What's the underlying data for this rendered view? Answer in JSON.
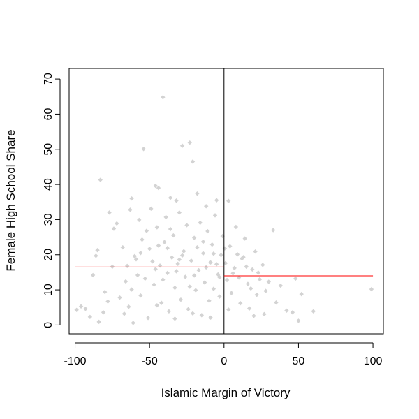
{
  "chart_data": {
    "type": "scatter",
    "title": "",
    "xlabel": "Islamic Margin of Victory",
    "ylabel": "Female High School Share",
    "xlim": [
      -104,
      107
    ],
    "ylim": [
      -2.5,
      73
    ],
    "xticks": [
      -100,
      -50,
      0,
      50,
      100
    ],
    "yticks": [
      0,
      10,
      20,
      30,
      40,
      50,
      60,
      70
    ],
    "xtick_labels": [
      "-100",
      "-50",
      "0",
      "50",
      "100"
    ],
    "ytick_labels": [
      "0",
      "10",
      "20",
      "30",
      "40",
      "50",
      "60",
      "70"
    ],
    "grid": false,
    "legend": "none",
    "point_color": "#d3d3d3",
    "fit_color": "#ff0000",
    "cutoff_line": {
      "x": 0,
      "color": "#000000"
    },
    "fitted_lines": [
      {
        "x": [
          -100,
          0
        ],
        "y": [
          16.5,
          16.5
        ]
      },
      {
        "x": [
          0,
          100
        ],
        "y": [
          14.0,
          14.0
        ]
      }
    ],
    "series": [
      {
        "points": [
          [
            -41,
            64.8
          ],
          [
            -54,
            50.1
          ],
          [
            -28,
            51.0
          ],
          [
            -23,
            51.9
          ],
          [
            -21,
            46.5
          ],
          [
            -83,
            41.3
          ],
          [
            -46,
            39.6
          ],
          [
            -44,
            39.0
          ],
          [
            -77,
            32.0
          ],
          [
            -36,
            36.2
          ],
          [
            -32,
            35.4
          ],
          [
            -18,
            37.4
          ],
          [
            -12,
            33.8
          ],
          [
            -5,
            35.5
          ],
          [
            3,
            35.3
          ],
          [
            33,
            27.0
          ],
          [
            -99,
            4.3
          ],
          [
            -96,
            5.3
          ],
          [
            -93,
            4.6
          ],
          [
            -90,
            2.3
          ],
          [
            -86,
            19.7
          ],
          [
            -85,
            21.3
          ],
          [
            -84,
            0.9
          ],
          [
            -81,
            3.6
          ],
          [
            -88,
            14.2
          ],
          [
            -80,
            9.4
          ],
          [
            -78,
            6.7
          ],
          [
            -75,
            16.6
          ],
          [
            -74,
            27.4
          ],
          [
            -72,
            28.9
          ],
          [
            -70,
            7.8
          ],
          [
            -68,
            22.1
          ],
          [
            -66,
            12.4
          ],
          [
            -64,
            5.2
          ],
          [
            -63,
            32.8
          ],
          [
            -62,
            36.0
          ],
          [
            -61,
            0.6
          ],
          [
            -59,
            18.7
          ],
          [
            -57,
            29.9
          ],
          [
            -56,
            8.4
          ],
          [
            -55,
            24.3
          ],
          [
            -53,
            13.2
          ],
          [
            -51,
            2.0
          ],
          [
            -50,
            21.7
          ],
          [
            -49,
            33.1
          ],
          [
            -47,
            11.5
          ],
          [
            -45,
            27.8
          ],
          [
            -43,
            16.9
          ],
          [
            -42,
            6.3
          ],
          [
            -40,
            23.6
          ],
          [
            -39,
            30.7
          ],
          [
            -38,
            14.8
          ],
          [
            -37,
            3.9
          ],
          [
            -35,
            19.2
          ],
          [
            -34,
            25.5
          ],
          [
            -33,
            10.6
          ],
          [
            -31,
            17.4
          ],
          [
            -30,
            32.0
          ],
          [
            -29,
            7.2
          ],
          [
            -27,
            21.0
          ],
          [
            -26,
            13.7
          ],
          [
            -25,
            28.4
          ],
          [
            -24,
            4.5
          ],
          [
            -22,
            18.3
          ],
          [
            -20,
            24.8
          ],
          [
            -19,
            9.9
          ],
          [
            -17,
            15.6
          ],
          [
            -16,
            29.1
          ],
          [
            -15,
            2.8
          ],
          [
            -14,
            20.4
          ],
          [
            -13,
            12.1
          ],
          [
            -11,
            26.7
          ],
          [
            -10,
            6.9
          ],
          [
            -9,
            17.8
          ],
          [
            -8,
            22.9
          ],
          [
            -7,
            10.3
          ],
          [
            -6,
            31.2
          ],
          [
            -4,
            14.4
          ],
          [
            -3,
            8.1
          ],
          [
            -2,
            19.9
          ],
          [
            -1,
            25.3
          ],
          [
            1,
            17.6
          ],
          [
            2,
            12.8
          ],
          [
            4,
            22.4
          ],
          [
            5,
            9.1
          ],
          [
            7,
            16.2
          ],
          [
            8,
            27.9
          ],
          [
            10,
            13.5
          ],
          [
            11,
            6.2
          ],
          [
            13,
            19.3
          ],
          [
            14,
            24.6
          ],
          [
            16,
            11.7
          ],
          [
            17,
            4.7
          ],
          [
            19,
            15.8
          ],
          [
            21,
            20.9
          ],
          [
            22,
            8.6
          ],
          [
            24,
            13.0
          ],
          [
            26,
            17.1
          ],
          [
            28,
            9.7
          ],
          [
            30,
            12.3
          ],
          [
            35,
            6.4
          ],
          [
            38,
            11.2
          ],
          [
            42,
            4.1
          ],
          [
            46,
            3.6
          ],
          [
            48,
            13.2
          ],
          [
            50,
            1.2
          ],
          [
            52,
            8.8
          ],
          [
            60,
            3.9
          ],
          [
            99,
            10.2
          ],
          [
            -60,
            19.6
          ],
          [
            -58,
            14.2
          ],
          [
            -52,
            26.8
          ],
          [
            -48,
            18.1
          ],
          [
            -44,
            22.6
          ],
          [
            -41,
            12.9
          ],
          [
            -36,
            27.3
          ],
          [
            -32,
            15.3
          ],
          [
            -28,
            19.8
          ],
          [
            -23,
            10.9
          ],
          [
            -18,
            22.1
          ],
          [
            -12,
            16.4
          ],
          [
            -7,
            20.3
          ],
          [
            -3,
            13.6
          ],
          [
            0.5,
            21.8
          ],
          [
            6,
            14.7
          ],
          [
            12,
            18.9
          ],
          [
            18,
            10.4
          ],
          [
            -65,
            16.8
          ],
          [
            -62,
            10.1
          ],
          [
            -56,
            20.5
          ],
          [
            -46,
            15.9
          ],
          [
            -38,
            21.9
          ],
          [
            -30,
            18.6
          ],
          [
            -20,
            14.1
          ],
          [
            -14,
            23.7
          ],
          [
            -5,
            17.3
          ],
          [
            9,
            20.1
          ],
          [
            15,
            16.6
          ],
          [
            23,
            14.9
          ],
          [
            -67,
            3.2
          ],
          [
            -45,
            5.6
          ],
          [
            -33,
            1.8
          ],
          [
            -21,
            3.3
          ],
          [
            -9,
            2.1
          ],
          [
            3,
            4.4
          ],
          [
            20,
            2.6
          ],
          [
            27,
            3.1
          ]
        ]
      }
    ]
  }
}
